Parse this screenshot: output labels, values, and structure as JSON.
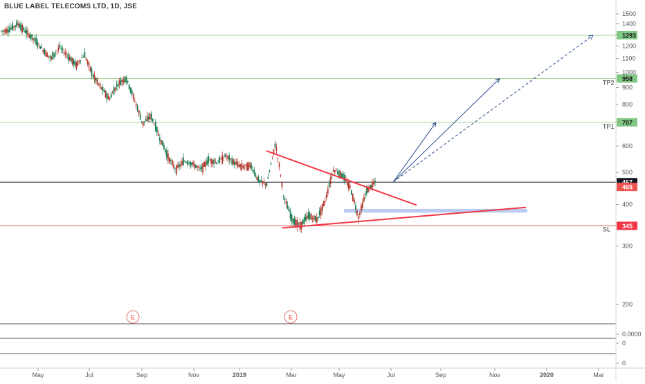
{
  "chart_data": {
    "type": "candlestick",
    "title": "BLUE LABEL TELECOMS LTD, 1D, JSE",
    "x_ticks": [
      "May",
      "Jul",
      "Sep",
      "Nov",
      "2019",
      "Mar",
      "May",
      "Jul",
      "Sep",
      "Nov",
      "2020",
      "Mar"
    ],
    "y_ticks": [
      1500,
      1400,
      1300,
      1200,
      1100,
      1000,
      900,
      800,
      600,
      500,
      400,
      300,
      200
    ],
    "ylim": [
      150,
      1550
    ],
    "y_scale": "log",
    "price_series": {
      "name": "",
      "points": [
        [
          "Apr",
          1330
        ],
        [
          "Apr",
          1345
        ],
        [
          "May",
          1400
        ],
        [
          "May",
          1320
        ],
        [
          "May",
          1250
        ],
        [
          "Jun",
          1170
        ],
        [
          "Jun",
          1100
        ],
        [
          "Jun",
          1190
        ],
        [
          "Jun",
          1120
        ],
        [
          "Jul",
          1050
        ],
        [
          "Jul",
          1130
        ],
        [
          "Jul",
          980
        ],
        [
          "Aug",
          900
        ],
        [
          "Aug",
          830
        ],
        [
          "Aug",
          920
        ],
        [
          "Aug",
          960
        ],
        [
          "Aug",
          830
        ],
        [
          "Sep",
          700
        ],
        [
          "Sep",
          740
        ],
        [
          "Sep",
          640
        ],
        [
          "Oct",
          560
        ],
        [
          "Oct",
          510
        ],
        [
          "Oct",
          540
        ],
        [
          "Nov",
          530
        ],
        [
          "Nov",
          510
        ],
        [
          "Nov",
          545
        ],
        [
          "Dec",
          535
        ],
        [
          "Dec",
          560
        ],
        [
          "Dec",
          535
        ],
        [
          "Dec",
          520
        ],
        [
          "Jan",
          525
        ],
        [
          "Jan",
          470
        ],
        [
          "Feb",
          460
        ],
        [
          "Feb",
          610
        ],
        [
          "Feb",
          420
        ],
        [
          "Mar",
          360
        ],
        [
          "Mar",
          345
        ],
        [
          "Mar",
          370
        ],
        [
          "Apr",
          360
        ],
        [
          "Apr",
          410
        ],
        [
          "May",
          510
        ],
        [
          "May",
          490
        ],
        [
          "May",
          450
        ],
        [
          "Jun",
          365
        ],
        [
          "Jun",
          440
        ],
        [
          "Jun",
          467
        ]
      ]
    },
    "horizontal_levels": [
      {
        "label": "1293",
        "value": 1293,
        "color": "#a7d493",
        "tag_color": "#81c784"
      },
      {
        "label": "958",
        "value": 958,
        "color": "#a7d493",
        "tag_color": "#81c784",
        "note": "TP2"
      },
      {
        "label": "707",
        "value": 707,
        "color": "#a7d493",
        "tag_color": "#81c784",
        "note": "TP1"
      },
      {
        "label": "467",
        "value": 467,
        "color": "#131722",
        "tag_color": "#131722"
      },
      {
        "label": "345",
        "value": 345,
        "color": "#ef5350",
        "tag_color": "#f23645",
        "note": "SL"
      }
    ],
    "price_tags": [
      {
        "label": "465",
        "value": 465,
        "color": "#ef5350"
      }
    ],
    "trendlines": [
      {
        "name": "descending-trendline",
        "from": [
          "Jan 2019",
          580
        ],
        "to": [
          "Jun 2019",
          398
        ],
        "color": "#f23645"
      },
      {
        "name": "ascending-trendline",
        "from": [
          "Feb 2019",
          340
        ],
        "to": [
          "Dec 2019",
          392
        ],
        "color": "#f23645"
      }
    ],
    "support_zone": {
      "from": "May 2019",
      "to": "Dec 2019",
      "low": 378,
      "high": 388,
      "color": "#b3c7ee"
    },
    "projections": [
      {
        "name": "projection-to-tp1",
        "from": [
          "Jul 2019",
          467
        ],
        "to": [
          "Sep 2019",
          707
        ],
        "style": "solid"
      },
      {
        "name": "projection-to-tp2",
        "from": [
          "Jul 2019",
          467
        ],
        "to": [
          "Oct 2019",
          958
        ],
        "style": "solid"
      },
      {
        "name": "projection-to-1293",
        "from": [
          "Jul 2019",
          467
        ],
        "to": [
          "Jan 2020",
          1293
        ],
        "style": "dashed"
      }
    ],
    "event_markers": [
      {
        "label": "E",
        "date": "Aug 2018"
      },
      {
        "label": "E",
        "date": "Feb 2019"
      }
    ],
    "indicator_panes": [
      {
        "ticks": []
      },
      {
        "ticks": [
          "0.0000",
          "0"
        ]
      },
      {
        "ticks": [
          "0"
        ]
      }
    ],
    "colors": {
      "up": "#26a69a",
      "down": "#ef5350",
      "candle_body_down": "#b33b2e",
      "candle_body_up": "#1b7c52",
      "projection": "#2a4a8a"
    }
  }
}
